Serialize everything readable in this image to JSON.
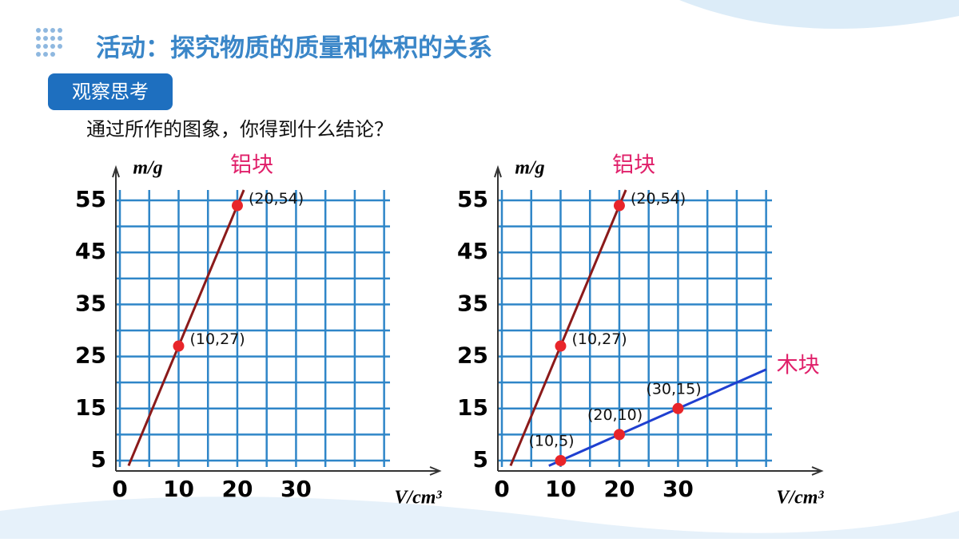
{
  "header": {
    "title": "活动：探究物质的质量和体积的关系",
    "tag": "观察思考",
    "question": "通过所作的图象，你得到什么结论？"
  },
  "chart_data": [
    {
      "type": "scatter-line",
      "y_label": "m/g",
      "x_label": "V/cm³",
      "xlim": [
        0,
        46
      ],
      "ylim": [
        3,
        57
      ],
      "xticks": [
        0,
        10,
        20,
        30
      ],
      "yticks": [
        5,
        15,
        25,
        35,
        45,
        55
      ],
      "xgrid": [
        0,
        5,
        10,
        15,
        20,
        25,
        30,
        35,
        40,
        45
      ],
      "ygrid": [
        5,
        10,
        15,
        20,
        25,
        30,
        35,
        40,
        45,
        50,
        55
      ],
      "series": [
        {
          "name": "铝块",
          "color": "#8b1a1a",
          "x": [
            10,
            20
          ],
          "values": [
            27,
            54
          ],
          "value_labels": [
            "(10,27)",
            "(20,54)"
          ]
        }
      ]
    },
    {
      "type": "scatter-line",
      "y_label": "m/g",
      "x_label": "V/cm³",
      "xlim": [
        0,
        46
      ],
      "ylim": [
        3,
        57
      ],
      "xticks": [
        0,
        10,
        20,
        30
      ],
      "yticks": [
        5,
        15,
        25,
        35,
        45,
        55
      ],
      "xgrid": [
        0,
        5,
        10,
        15,
        20,
        25,
        30,
        35,
        40,
        45
      ],
      "ygrid": [
        5,
        10,
        15,
        20,
        25,
        30,
        35,
        40,
        45,
        50,
        55
      ],
      "series": [
        {
          "name": "铝块",
          "color": "#8b1a1a",
          "x": [
            10,
            20
          ],
          "values": [
            27,
            54
          ],
          "value_labels": [
            "(10,27)",
            "(20,54)"
          ]
        },
        {
          "name": "木块",
          "color": "#1f3fd0",
          "x": [
            10,
            20,
            30
          ],
          "values": [
            5,
            10,
            15
          ],
          "value_labels": [
            "(10,5)",
            "(20,10)",
            "(30,15)"
          ]
        }
      ]
    }
  ]
}
